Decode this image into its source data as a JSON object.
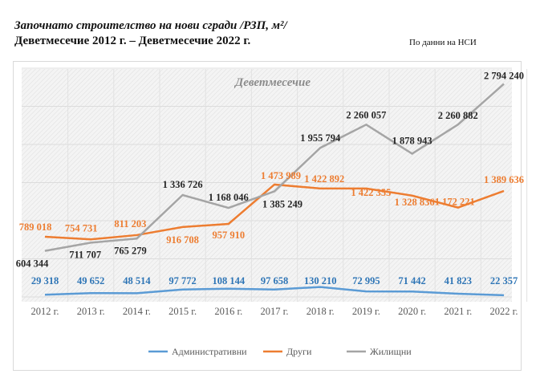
{
  "header": {
    "title": "Започнато строителство на нови сгради /РЗП, м²/",
    "subtitle": "Деветмесечие 2012 г. – Деветмесечие 2022 г.",
    "source": "По  данни на НСИ"
  },
  "chart_data": {
    "type": "line",
    "title": "Деветмесечие",
    "categories": [
      "2012 г.",
      "2013 г.",
      "2014 г.",
      "2015 г.",
      "2016 г.",
      "2017 г.",
      "2018 г.",
      "2019 г.",
      "2020 г.",
      "2021 г.",
      "2022 г."
    ],
    "ylim": [
      0,
      3000000
    ],
    "grid": true,
    "legend_position": "bottom",
    "series": [
      {
        "name": "Административни",
        "color": "#5b9bd5",
        "label_color": "#2e75b6",
        "values": [
          29318,
          49652,
          48514,
          97772,
          108144,
          97658,
          130210,
          72995,
          71442,
          41823,
          22357
        ],
        "labels": [
          "29 318",
          "49 652",
          "48 514",
          "97 772",
          "108 144",
          "97 658",
          "130 210",
          "72 995",
          "71 442",
          "41 823",
          "22 357"
        ]
      },
      {
        "name": "Други",
        "color": "#ed7d31",
        "label_color": "#ed7d31",
        "values": [
          789018,
          754731,
          811203,
          916708,
          957910,
          1473989,
          1422892,
          1422355,
          1328836,
          1172221,
          1389636
        ],
        "labels": [
          "789 018",
          "754 731",
          "811 203",
          "916 708",
          "957 910",
          "1 473 989",
          "1 422 892",
          "1 422 355",
          "1 328 836",
          "1 172 221",
          "1 389 636"
        ]
      },
      {
        "name": "Жилищни",
        "color": "#a5a5a5",
        "label_color": "#262626",
        "values": [
          604344,
          711707,
          765279,
          1336726,
          1168046,
          1385249,
          1955794,
          2260057,
          1878943,
          2260882,
          2794240
        ],
        "labels": [
          "604 344",
          "711 707",
          "765 279",
          "1 336 726",
          "1 168 046",
          "1 385 249",
          "1 955 794",
          "2 260 057",
          "1 878 943",
          "2 260 882",
          "2 794 240"
        ]
      }
    ]
  }
}
